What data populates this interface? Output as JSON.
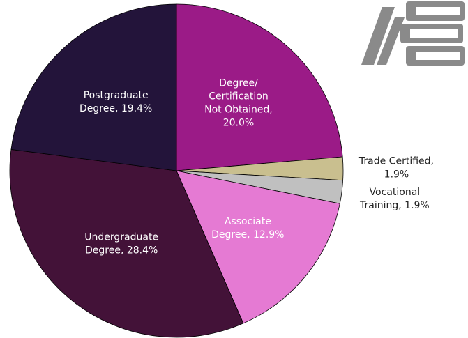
{
  "chart_data": {
    "type": "pie",
    "values": [
      20.0,
      1.9,
      1.9,
      12.9,
      28.4,
      19.4
    ],
    "value_labels": [
      [
        "Degree/",
        "Certification",
        "Not Obtained,",
        "20.0%"
      ],
      [
        "Trade Certified,",
        "1.9%"
      ],
      [
        "Vocational",
        "Training, 1.9%"
      ],
      [
        "Associate",
        "Degree, 12.9%"
      ],
      [
        "Undergraduate",
        "Degree, 28.4%"
      ],
      [
        "Postgraduate",
        "Degree, 19.4%"
      ]
    ],
    "colors": [
      "#9b1b87",
      "#c9bf8f",
      "#c0c0c0",
      "#e57ad3",
      "#431238",
      "#23143a"
    ],
    "label_colors": [
      "#ffffff",
      "#222222",
      "#222222",
      "#ffffff",
      "#ffffff",
      "#ffffff"
    ]
  }
}
